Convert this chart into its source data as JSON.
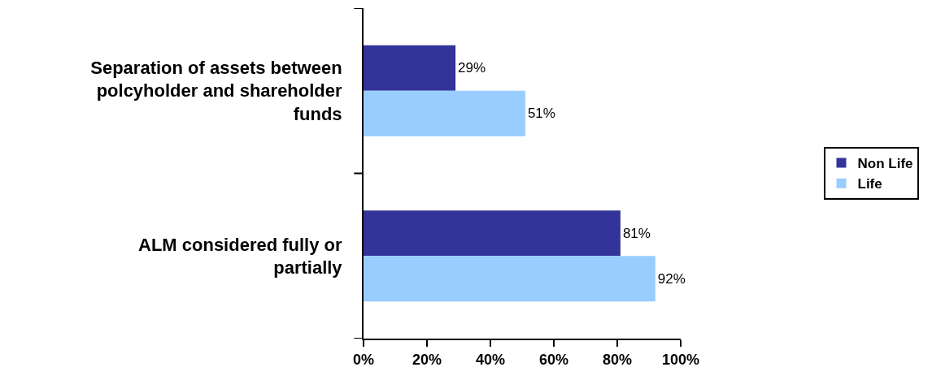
{
  "chart_data": {
    "type": "bar",
    "orientation": "horizontal",
    "categories": [
      "Separation of assets between polcyholder and shareholder funds",
      "ALM considered fully or partially"
    ],
    "series": [
      {
        "name": "Non Life",
        "color": "#333399",
        "values": [
          29,
          81
        ],
        "value_labels": [
          "29%",
          "81%"
        ]
      },
      {
        "name": "Life",
        "color": "#99ccff",
        "values": [
          51,
          92
        ],
        "value_labels": [
          "51%",
          "92%"
        ]
      }
    ],
    "xlim": [
      0,
      100
    ],
    "xticks": [
      {
        "value": 0,
        "label": "0%"
      },
      {
        "value": 20,
        "label": "20%"
      },
      {
        "value": 40,
        "label": "40%"
      },
      {
        "value": 60,
        "label": "60%"
      },
      {
        "value": 80,
        "label": "80%"
      },
      {
        "value": 100,
        "label": "100%"
      }
    ],
    "legend": "right"
  }
}
